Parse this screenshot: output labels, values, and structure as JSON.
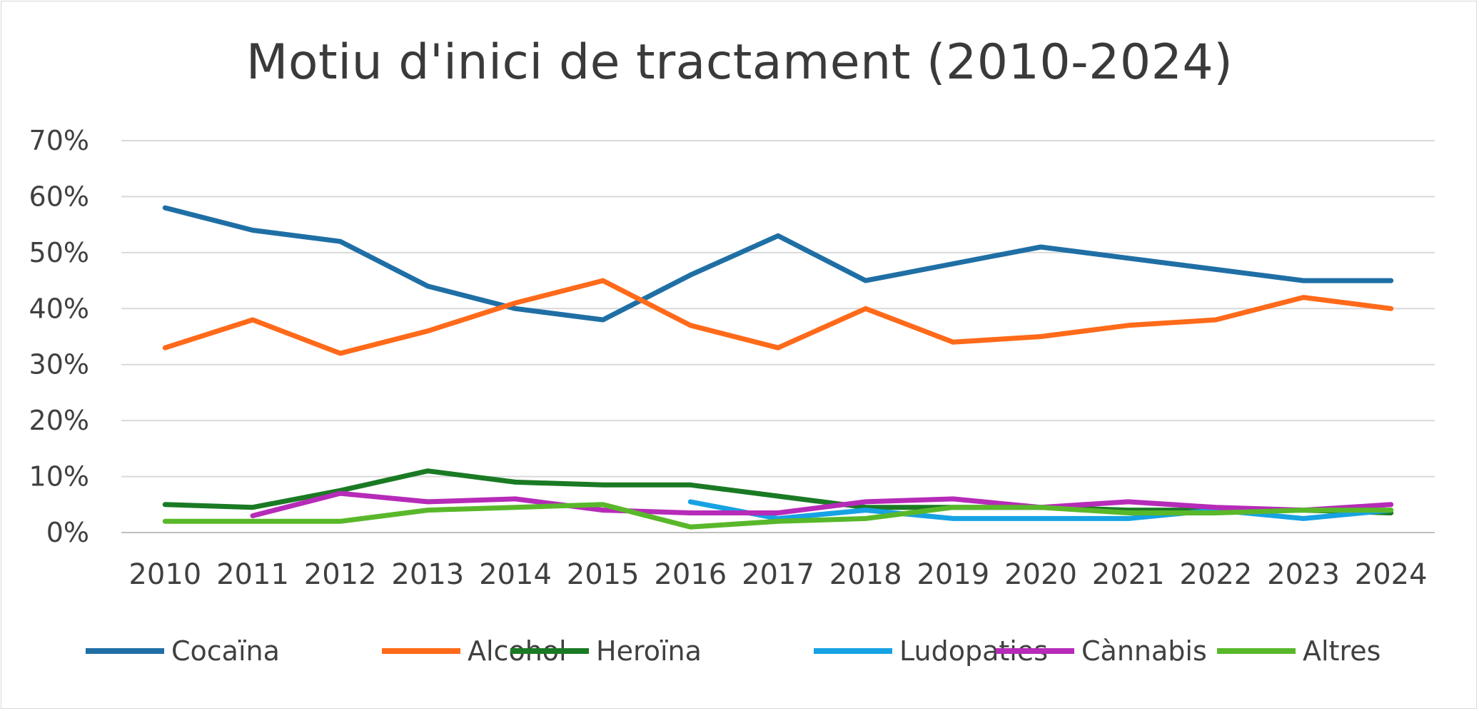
{
  "chart_data": {
    "type": "line",
    "title": "Motiu d'inici de tractament (2010-2024)",
    "xlabel": "",
    "ylabel": "",
    "x": [
      "2010",
      "2011",
      "2012",
      "2013",
      "2014",
      "2015",
      "2016",
      "2017",
      "2018",
      "2019",
      "2020",
      "2021",
      "2022",
      "2023",
      "2024"
    ],
    "ylim": [
      0,
      70
    ],
    "yticks": [
      "0%",
      "10%",
      "20%",
      "30%",
      "40%",
      "50%",
      "60%",
      "70%"
    ],
    "grid": true,
    "legend": "bottom",
    "series": [
      {
        "name": "Cocaïna",
        "color": "#1f6fa5",
        "values": [
          58,
          54,
          52,
          44,
          40,
          38,
          46,
          53,
          45,
          48,
          51,
          49,
          47,
          45,
          45
        ]
      },
      {
        "name": "Alcohol",
        "color": "#ff6a1a",
        "values": [
          33,
          38,
          32,
          36,
          41,
          45,
          37,
          33,
          40,
          34,
          35,
          37,
          38,
          42,
          40
        ]
      },
      {
        "name": "Heroïna",
        "color": "#1a7a24",
        "values": [
          5,
          4.5,
          7.5,
          11,
          9,
          8.5,
          8.5,
          6.5,
          4.5,
          4.5,
          4.5,
          4,
          4,
          4,
          3.5
        ]
      },
      {
        "name": "Ludopaties",
        "color": "#17a2e3",
        "values": [
          null,
          null,
          null,
          null,
          null,
          null,
          5.5,
          2.5,
          4,
          2.5,
          2.5,
          2.5,
          4,
          2.5,
          4
        ]
      },
      {
        "name": "Cànnabis",
        "color": "#b62bb8",
        "values": [
          null,
          3,
          7,
          5.5,
          6,
          4,
          3.5,
          3.5,
          5.5,
          6,
          4.5,
          5.5,
          4.5,
          4,
          5
        ]
      },
      {
        "name": "Altres",
        "color": "#59b82a",
        "values": [
          2,
          2,
          2,
          4,
          4.5,
          5,
          1,
          2,
          2.5,
          4.5,
          4.5,
          3.5,
          3.5,
          4,
          4
        ]
      }
    ]
  }
}
